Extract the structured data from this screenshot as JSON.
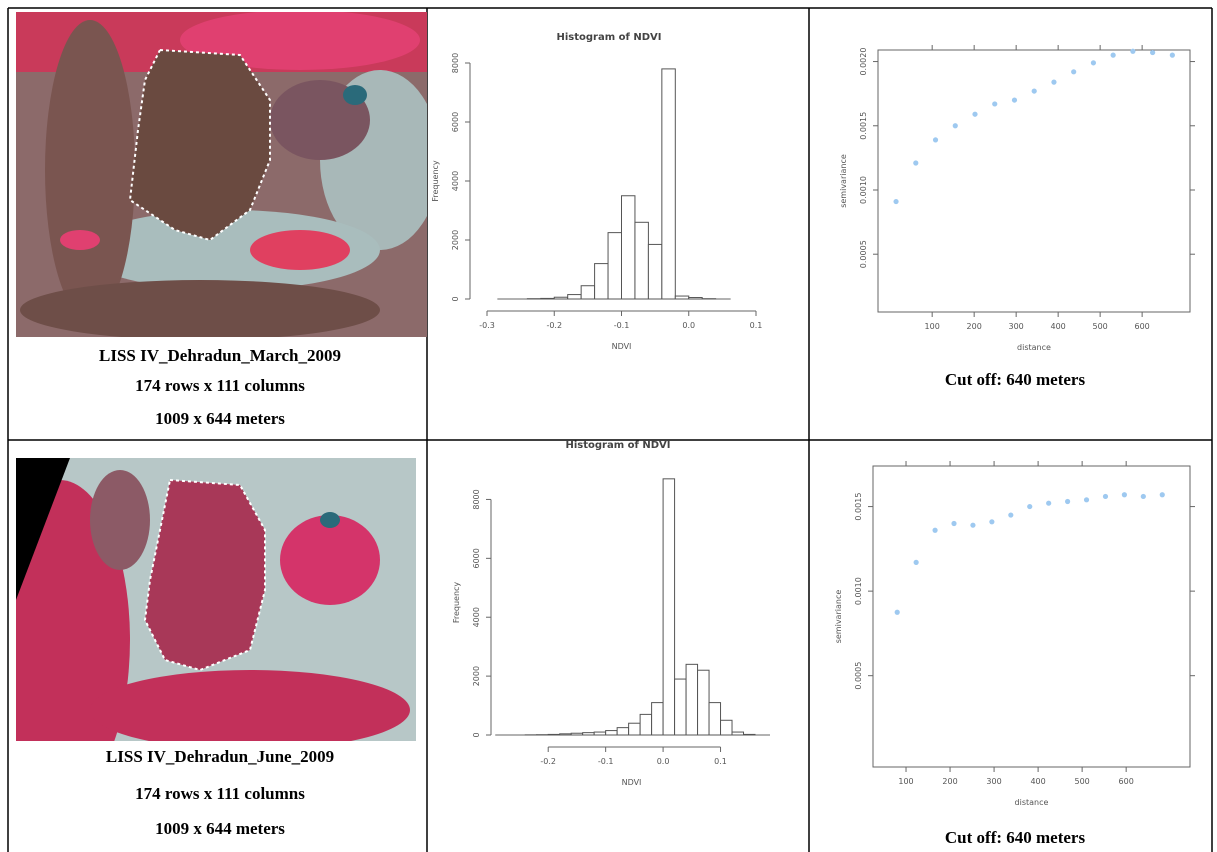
{
  "table": {
    "rows": [
      {
        "image": {
          "caption": [
            "LISS IV_Dehradun_March_2009",
            "174 rows x 111 columns",
            "1009 x 644 meters"
          ]
        },
        "histogram": {
          "type": "histogram",
          "title": "Histogram of NDVI",
          "xlabel": "NDVI",
          "ylabel": "Frequency",
          "bins": [
            -0.24,
            -0.22,
            -0.2,
            -0.18,
            -0.16,
            -0.14,
            -0.12,
            -0.1,
            -0.08,
            -0.06,
            -0.04,
            -0.02,
            0,
            0.02,
            0.04
          ],
          "counts": [
            10,
            20,
            60,
            150,
            450,
            1200,
            2250,
            3500,
            2600,
            1850,
            7800,
            100,
            50,
            10
          ],
          "xlim": [
            -0.3,
            0.1
          ],
          "ylim": [
            0,
            8000
          ],
          "xticks": [
            -0.3,
            -0.2,
            -0.1,
            {
              "value": 0,
              "label": "0.0"
            },
            0.1
          ],
          "yticks": [
            0,
            2000,
            4000,
            6000,
            8000
          ]
        },
        "variogram": {
          "type": "scatter",
          "xlabel": "distance",
          "ylabel": "semivariance",
          "color": "#9ec9f0",
          "x": [
            14,
            61,
            108,
            155,
            202,
            249,
            296,
            343,
            390,
            437,
            484,
            531,
            578,
            625,
            672
          ],
          "values": [
            0.00091,
            0.00121,
            0.00139,
            0.0015,
            0.00159,
            0.00167,
            0.0017,
            0.00177,
            0.00184,
            0.00192,
            0.00199,
            0.00205,
            0.00208,
            0.00207,
            0.00205
          ],
          "xlim": [
            -29,
            714
          ],
          "ylim": [
            5e-05,
            0.00209
          ],
          "xticks": [
            100,
            200,
            300,
            400,
            500,
            600
          ],
          "yticks": [
            {
              "value": 0.0005,
              "label": "0.0005"
            },
            {
              "value": 0.001,
              "label": "0.0010"
            },
            {
              "value": 0.0015,
              "label": "0.0015"
            },
            {
              "value": 0.002,
              "label": "0.0020"
            }
          ],
          "caption": "Cut off: 640 meters"
        }
      },
      {
        "image": {
          "caption": [
            "LISS IV_Dehradun_June_2009",
            "174 rows x 111 columns",
            "1009 x 644 meters"
          ]
        },
        "histogram": {
          "type": "histogram",
          "title": "Histogram of NDVI",
          "xlabel": "NDVI",
          "ylabel": "Frequency",
          "bins": [
            -0.24,
            -0.22,
            -0.2,
            -0.18,
            -0.16,
            -0.14,
            -0.12,
            -0.1,
            -0.08,
            -0.06,
            -0.04,
            -0.02,
            0,
            0.02,
            0.04,
            0.06,
            0.08,
            0.1,
            0.12,
            0.14,
            0.16
          ],
          "counts": [
            5,
            10,
            20,
            40,
            60,
            80,
            100,
            150,
            250,
            400,
            700,
            1100,
            8700,
            1900,
            2400,
            2200,
            1100,
            500,
            100,
            20
          ],
          "xlim": [
            -0.27,
            0.16
          ],
          "ylim": [
            0,
            9000
          ],
          "xticks": [
            -0.2,
            -0.1,
            {
              "value": 0,
              "label": "0.0"
            },
            0.1
          ],
          "yticks": [
            0,
            2000,
            4000,
            6000,
            8000
          ]
        },
        "variogram": {
          "type": "scatter",
          "xlabel": "distance",
          "ylabel": "semivariance",
          "color": "#9ec9f0",
          "x": [
            80,
            123,
            166,
            209,
            252,
            295,
            338,
            381,
            424,
            467,
            510,
            553,
            596,
            639,
            682
          ],
          "values": [
            0.000875,
            0.00117,
            0.00136,
            0.0014,
            0.00139,
            0.00141,
            0.00145,
            0.0015,
            0.00152,
            0.00153,
            0.00154,
            0.00156,
            0.00157,
            0.00156,
            0.00157
          ],
          "xlim": [
            25,
            745
          ],
          "ylim": [
            -4e-05,
            0.00174
          ],
          "xticks": [
            100,
            200,
            300,
            400,
            500,
            600
          ],
          "yticks": [
            {
              "value": 0.0005,
              "label": "0.0005"
            },
            {
              "value": 0.001,
              "label": "0.0010"
            },
            {
              "value": 0.0015,
              "label": "0.0015"
            }
          ],
          "caption": "Cut off: 640 meters"
        }
      }
    ]
  }
}
